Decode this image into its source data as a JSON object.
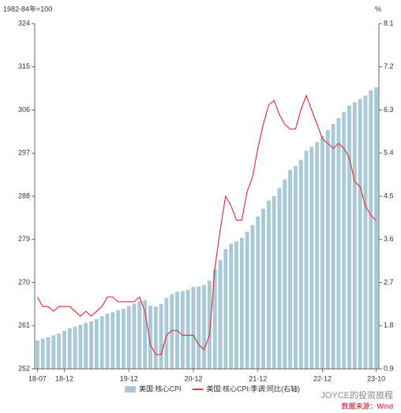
{
  "chart_data": {
    "type": "bar",
    "y_label": "1982-84年=100",
    "y2_label": "%",
    "categories": [
      "18-07",
      null,
      null,
      null,
      null,
      "18-12",
      null,
      null,
      null,
      null,
      null,
      null,
      null,
      null,
      null,
      null,
      null,
      "19-12",
      null,
      null,
      null,
      null,
      null,
      null,
      null,
      null,
      null,
      null,
      null,
      "20-12",
      null,
      null,
      null,
      null,
      null,
      null,
      null,
      null,
      null,
      null,
      null,
      "21-12",
      null,
      null,
      null,
      null,
      null,
      null,
      null,
      null,
      null,
      null,
      null,
      "22-12",
      null,
      null,
      null,
      null,
      null,
      null,
      null,
      null,
      null,
      "23-10"
    ],
    "series": [
      {
        "name": "美国:核心CPI",
        "type": "bar",
        "color": "#a9c9d9",
        "values": [
          257.9,
          258.3,
          258.6,
          259.0,
          259.4,
          259.9,
          260.5,
          260.8,
          261.2,
          261.6,
          261.9,
          262.4,
          263.0,
          263.5,
          263.8,
          264.2,
          264.5,
          265.1,
          265.6,
          266.2,
          266.3,
          265.2,
          265.0,
          265.5,
          266.8,
          267.6,
          268.1,
          268.2,
          268.5,
          269.1,
          269.2,
          269.5,
          270.4,
          272.7,
          274.7,
          277.0,
          278.1,
          278.6,
          279.3,
          280.6,
          282.0,
          283.8,
          285.4,
          287.1,
          288.0,
          289.7,
          291.5,
          293.5,
          294.3,
          295.6,
          297.5,
          298.3,
          299.3,
          300.6,
          301.8,
          303.1,
          304.3,
          305.6,
          306.9,
          307.6,
          308.3,
          309.0,
          310.1,
          310.7
        ]
      },
      {
        "name": "美国:核心CPI:季调:同比(右轴)",
        "type": "line",
        "axis": "y2",
        "color": "#e0383a",
        "values": [
          2.4,
          2.2,
          2.2,
          2.1,
          2.2,
          2.2,
          2.2,
          2.1,
          2.0,
          2.1,
          2.0,
          2.1,
          2.2,
          2.4,
          2.4,
          2.3,
          2.3,
          2.3,
          2.3,
          2.4,
          2.1,
          1.4,
          1.2,
          1.2,
          1.6,
          1.7,
          1.7,
          1.6,
          1.6,
          1.6,
          1.4,
          1.3,
          1.6,
          3.0,
          3.8,
          4.5,
          4.3,
          4.0,
          4.0,
          4.6,
          4.9,
          5.5,
          6.0,
          6.4,
          6.5,
          6.2,
          6.0,
          5.9,
          5.9,
          6.3,
          6.6,
          6.3,
          6.0,
          5.7,
          5.6,
          5.5,
          5.6,
          5.5,
          5.3,
          4.8,
          4.7,
          4.3,
          4.1,
          4.0
        ]
      }
    ],
    "ylim": [
      252,
      324
    ],
    "yticks": [
      252,
      261,
      270,
      279,
      288,
      297,
      306,
      315,
      324
    ],
    "y2lim": [
      0.9,
      8.1
    ],
    "y2ticks": [
      0.9,
      1.8,
      2.7,
      3.6,
      4.5,
      5.4,
      6.3,
      7.2,
      8.1
    ],
    "grid": false,
    "legend": "bottom",
    "watermark": "JOYCE的投资旅程",
    "source": "数据来源：Wind"
  }
}
